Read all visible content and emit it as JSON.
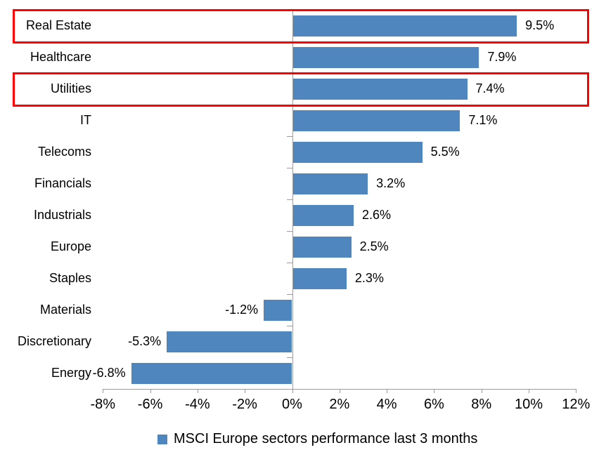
{
  "chart_data": {
    "type": "bar",
    "orientation": "horizontal",
    "title": "",
    "legend": "MSCI Europe sectors performance last 3 months",
    "categories": [
      "Real Estate",
      "Healthcare",
      "Utilities",
      "IT",
      "Telecoms",
      "Financials",
      "Industrials",
      "Europe",
      "Staples",
      "Materials",
      "Discretionary",
      "Energy"
    ],
    "values": [
      9.5,
      7.9,
      7.4,
      7.1,
      5.5,
      3.2,
      2.6,
      2.5,
      2.3,
      -1.2,
      -5.3,
      -6.8
    ],
    "value_labels": [
      "9.5%",
      "7.9%",
      "7.4%",
      "7.1%",
      "5.5%",
      "3.2%",
      "2.6%",
      "2.5%",
      "2.3%",
      "-1.2%",
      "-5.3%",
      "-6.8%"
    ],
    "highlight_rows": [
      0,
      2
    ],
    "x_axis": {
      "min": -8,
      "max": 12,
      "ticks": [
        -8,
        -6,
        -4,
        -2,
        0,
        2,
        4,
        6,
        8,
        10,
        12
      ],
      "tick_labels": [
        "-8%",
        "-6%",
        "-4%",
        "-2%",
        "0%",
        "2%",
        "4%",
        "6%",
        "8%",
        "10%",
        "12%"
      ]
    },
    "grid": false,
    "legend_position": "bottom",
    "colors": {
      "bar": "#4e86bd",
      "highlight_border": "#fe0000",
      "axis": "#9b9b9b",
      "text": "#000000"
    }
  }
}
